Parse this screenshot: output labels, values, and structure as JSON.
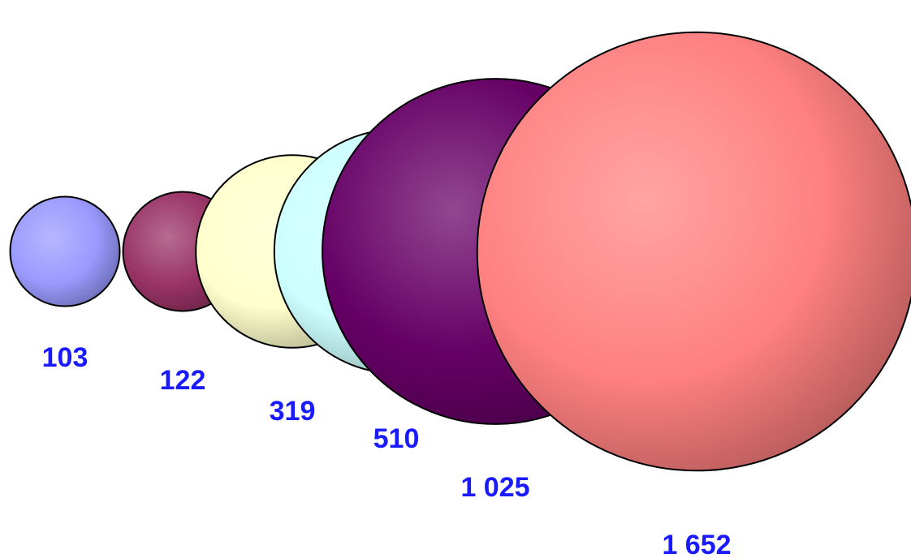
{
  "chart_data": {
    "type": "bubble",
    "title": "",
    "legend": "none",
    "grid": false,
    "label_color": "#1a1aff",
    "outline_color": "#000000",
    "items": [
      {
        "value": 103,
        "label": "103",
        "color": "#9a9aff"
      },
      {
        "value": 122,
        "label": "122",
        "color": "#993366"
      },
      {
        "value": 319,
        "label": "319",
        "color": "#ffffcc"
      },
      {
        "value": 510,
        "label": "510",
        "color": "#ccffff"
      },
      {
        "value": 1025,
        "label": "1 025",
        "color": "#660066"
      },
      {
        "value": 1652,
        "label": "1 652",
        "color": "#ff8080"
      }
    ]
  }
}
